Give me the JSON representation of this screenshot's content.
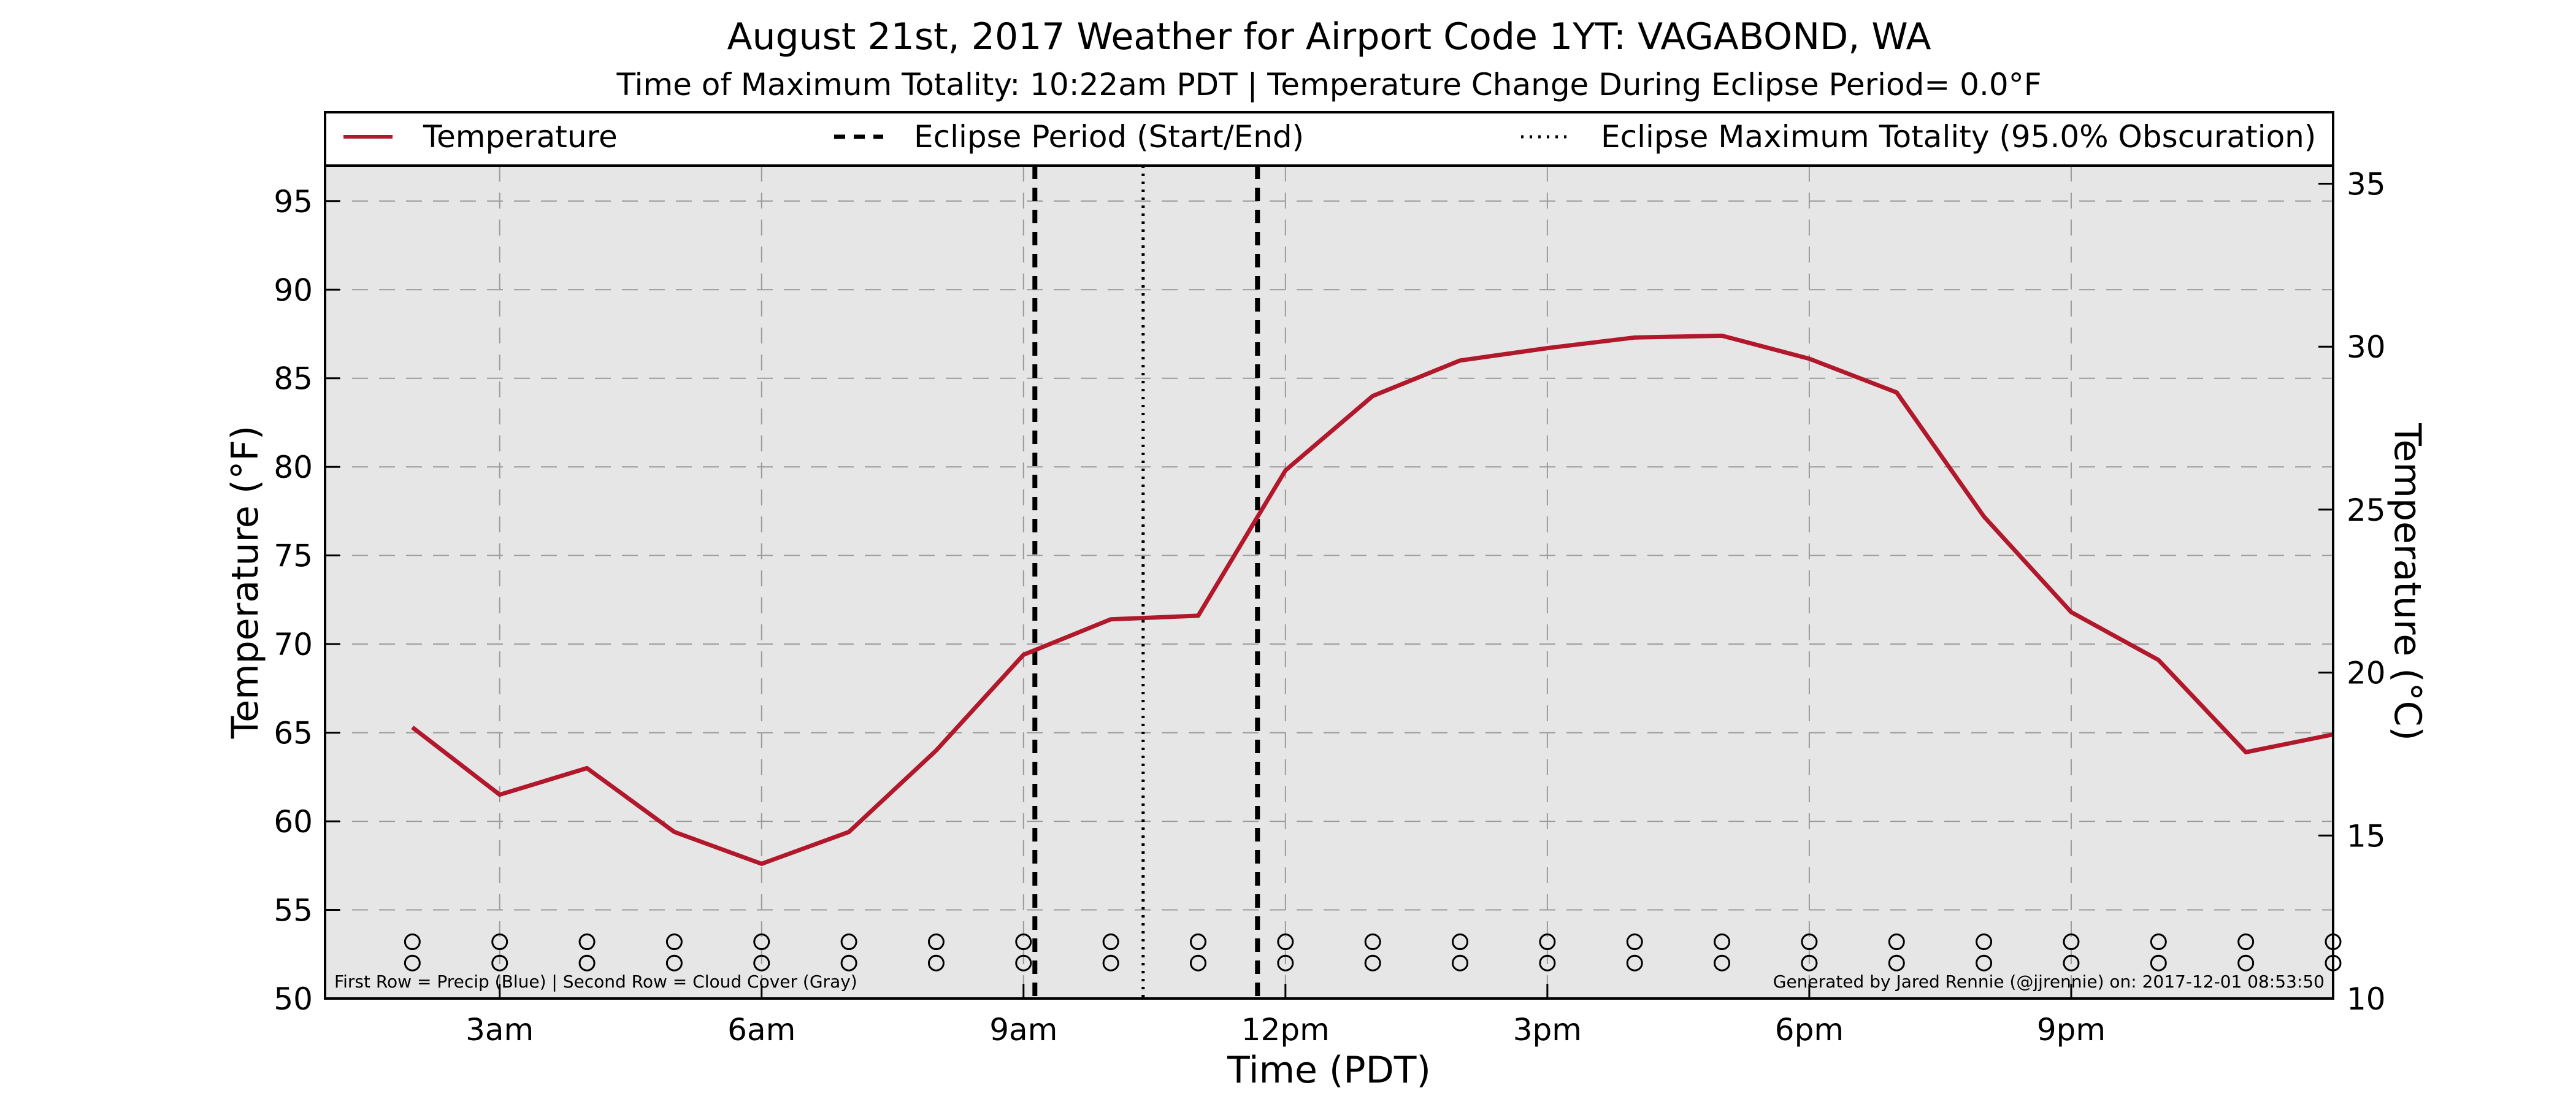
{
  "chart_data": {
    "type": "line",
    "title": "August 21st, 2017 Weather for Airport Code 1YT: VAGABOND, WA",
    "subtitle": "Time of Maximum Totality: 10:22am PDT | Temperature Change During Eclipse Period= 0.0°F",
    "xlabel": "Time (PDT)",
    "ylabel": "Temperature (°F)",
    "ylabel_right": "Temperature (°C)",
    "x_unit": "hours after midnight PDT, Aug 21 2017",
    "xlim": [
      1,
      24
    ],
    "ylim": [
      50,
      97
    ],
    "ylim_right": [
      10,
      35.555
    ],
    "x_ticks": [
      {
        "x": 3,
        "label": "3am"
      },
      {
        "x": 6,
        "label": "6am"
      },
      {
        "x": 9,
        "label": "9am"
      },
      {
        "x": 12,
        "label": "12pm"
      },
      {
        "x": 15,
        "label": "3pm"
      },
      {
        "x": 18,
        "label": "6pm"
      },
      {
        "x": 21,
        "label": "9pm"
      }
    ],
    "y_ticks": [
      50,
      55,
      60,
      65,
      70,
      75,
      80,
      85,
      90,
      95
    ],
    "y_ticks_right": [
      10,
      15,
      20,
      25,
      30,
      35
    ],
    "grid": true,
    "background": "#e6e6e6",
    "legend": {
      "placement": "top",
      "entries": [
        {
          "label": "Temperature",
          "style": "solid",
          "color": "#b2182b"
        },
        {
          "label": "Eclipse Period (Start/End)",
          "style": "dashed",
          "color": "#000000"
        },
        {
          "label": "Eclipse Maximum Totality (95.0% Obscuration)",
          "style": "dotted",
          "color": "#000000"
        }
      ]
    },
    "series": [
      {
        "name": "Temperature",
        "color": "#b2182b",
        "x": [
          2,
          3,
          4,
          5,
          6,
          7,
          8,
          9,
          10,
          11,
          12,
          13,
          14,
          15,
          16,
          17,
          18,
          19,
          20,
          21,
          22,
          23,
          24
        ],
        "y": [
          65.3,
          61.5,
          63.0,
          59.4,
          57.6,
          59.4,
          64.0,
          69.4,
          71.4,
          71.6,
          79.8,
          84.0,
          86.0,
          86.7,
          87.3,
          87.4,
          86.1,
          84.2,
          77.2,
          71.8,
          69.1,
          63.9,
          64.9
        ]
      }
    ],
    "eclipse": {
      "start": 9.13,
      "end": 11.68,
      "max_totality": 10.37
    },
    "marker_rows": {
      "x": [
        2,
        3,
        4,
        5,
        6,
        7,
        8,
        9,
        10,
        11,
        12,
        13,
        14,
        15,
        16,
        17,
        18,
        19,
        20,
        21,
        22,
        23,
        24
      ],
      "precip_y": 53.2,
      "cloud_y": 52.0
    },
    "footnote_left": "First Row = Precip (Blue) | Second Row = Cloud Cover (Gray)",
    "footnote_right": "Generated by Jared Rennie (@jjrennie) on: 2017-12-01 08:53:50"
  }
}
